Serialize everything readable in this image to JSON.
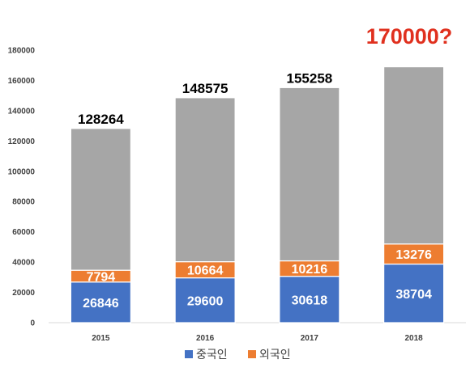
{
  "chart_data": {
    "type": "bar",
    "stacked": true,
    "categories": [
      "2015",
      "2016",
      "2017",
      "2018"
    ],
    "series": [
      {
        "name": "중국인",
        "values": [
          26846,
          29600,
          30618,
          38704
        ],
        "color": "#4472C4"
      },
      {
        "name": "외국인",
        "values": [
          7794,
          10664,
          10216,
          13276
        ],
        "color": "#ED7D31"
      },
      {
        "values": [
          93624,
          108311,
          114424,
          117020
        ],
        "color": "#A6A6A6"
      }
    ],
    "totals": [
      "128264",
      "148575",
      "155258",
      ""
    ],
    "projection": {
      "category": "2018",
      "label": "170000?",
      "color": "#E0301E"
    },
    "ylim": [
      0,
      180000
    ],
    "yticks": [
      0,
      20000,
      40000,
      60000,
      80000,
      100000,
      120000,
      140000,
      160000,
      180000
    ],
    "grid": false,
    "legend": {
      "position": "bottom"
    },
    "title": "",
    "xlabel": "",
    "ylabel": ""
  }
}
